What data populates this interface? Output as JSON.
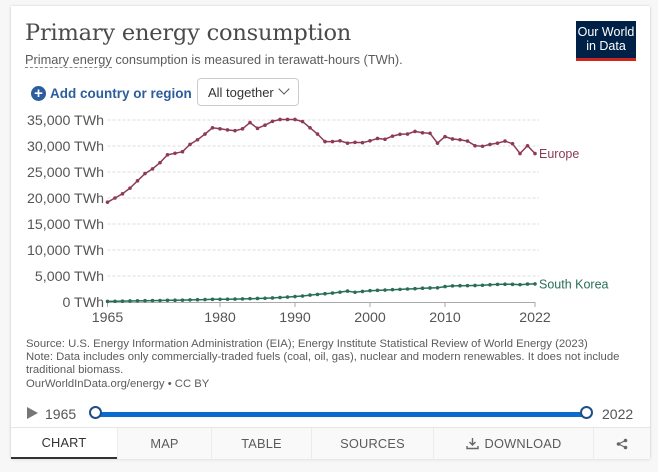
{
  "header": {
    "title": "Primary energy consumption",
    "subtitle_link": "Primary energy",
    "subtitle_rest": " consumption is measured in terawatt-hours (TWh).",
    "logo_line1": "Our World",
    "logo_line2": "in Data"
  },
  "controls": {
    "add_label": "Add country or region",
    "add_icon": "plus-circle-icon",
    "select_value": "All together"
  },
  "footer": {
    "source": "Source: U.S. Energy Information Administration (EIA); Energy Institute Statistical Review of World Energy (2023)",
    "note": "Note: Data includes only commercially-traded fuels (coal, oil, gas), nuclear and modern renewables. It does not include traditional biomass.",
    "credit": "OurWorldInData.org/energy • CC BY"
  },
  "timeline": {
    "start_year": "1965",
    "end_year": "2022",
    "range_start": 1965,
    "range_end": 2022,
    "min": 1965,
    "max": 2022
  },
  "tabs": [
    {
      "label": "CHART",
      "active": true
    },
    {
      "label": "MAP",
      "active": false
    },
    {
      "label": "TABLE",
      "active": false
    },
    {
      "label": "SOURCES",
      "active": false
    },
    {
      "label": "DOWNLOAD",
      "active": false,
      "icon": "download-icon"
    },
    {
      "label": "",
      "active": false,
      "icon": "share-icon"
    }
  ],
  "colors": {
    "europe": "#8c3a57",
    "south_korea": "#2a6e58",
    "link": "#2c5d9c",
    "slider": "#0a6ccd",
    "logo_bg": "#002147",
    "logo_bar": "#ce261e"
  },
  "chart_data": {
    "type": "line",
    "title": "Primary energy consumption",
    "xlabel": "",
    "ylabel": "",
    "xlim": [
      1965,
      2022
    ],
    "ylim": [
      0,
      35000
    ],
    "x_ticks": [
      "1965",
      "1980",
      "1990",
      "2000",
      "2010",
      "2022"
    ],
    "y_ticks": [
      "0 TWh",
      "5,000 TWh",
      "10,000 TWh",
      "15,000 TWh",
      "20,000 TWh",
      "25,000 TWh",
      "30,000 TWh",
      "35,000 TWh"
    ],
    "y_tick_values": [
      0,
      5000,
      10000,
      15000,
      20000,
      25000,
      30000,
      35000
    ],
    "x_tick_values": [
      1965,
      1980,
      1990,
      2000,
      2010,
      2022
    ],
    "grid": "horizontal dashed",
    "legend": "inline labels at line ends (right)",
    "x": [
      1965,
      1966,
      1967,
      1968,
      1969,
      1970,
      1971,
      1972,
      1973,
      1974,
      1975,
      1976,
      1977,
      1978,
      1979,
      1980,
      1981,
      1982,
      1983,
      1984,
      1985,
      1986,
      1987,
      1988,
      1989,
      1990,
      1991,
      1992,
      1993,
      1994,
      1995,
      1996,
      1997,
      1998,
      1999,
      2000,
      2001,
      2002,
      2003,
      2004,
      2005,
      2006,
      2007,
      2008,
      2009,
      2010,
      2011,
      2012,
      2013,
      2014,
      2015,
      2016,
      2017,
      2018,
      2019,
      2020,
      2021,
      2022
    ],
    "series": [
      {
        "name": "Europe",
        "values": [
          19200,
          20000,
          20800,
          21900,
          23300,
          24700,
          25600,
          26800,
          28300,
          28600,
          28900,
          30300,
          31200,
          32300,
          33500,
          33300,
          33100,
          32950,
          33300,
          34500,
          33400,
          34000,
          34750,
          35100,
          35100,
          35100,
          34700,
          33500,
          32300,
          30850,
          30850,
          31000,
          30550,
          30700,
          30650,
          31000,
          31450,
          31300,
          31900,
          32250,
          32300,
          32800,
          32550,
          32450,
          30550,
          31800,
          31350,
          31200,
          30950,
          30050,
          29950,
          30300,
          30550,
          30950,
          30450,
          28550,
          30050,
          28550
        ]
      },
      {
        "name": "South Korea",
        "values": [
          120,
          140,
          165,
          195,
          220,
          245,
          270,
          290,
          320,
          340,
          360,
          400,
          440,
          470,
          510,
          520,
          540,
          560,
          600,
          640,
          680,
          720,
          780,
          860,
          950,
          1050,
          1150,
          1330,
          1460,
          1590,
          1720,
          1900,
          2100,
          1870,
          2040,
          2180,
          2240,
          2300,
          2370,
          2430,
          2500,
          2560,
          2650,
          2700,
          2730,
          2960,
          3100,
          3130,
          3150,
          3180,
          3220,
          3300,
          3380,
          3420,
          3400,
          3330,
          3440,
          3480
        ]
      }
    ]
  }
}
